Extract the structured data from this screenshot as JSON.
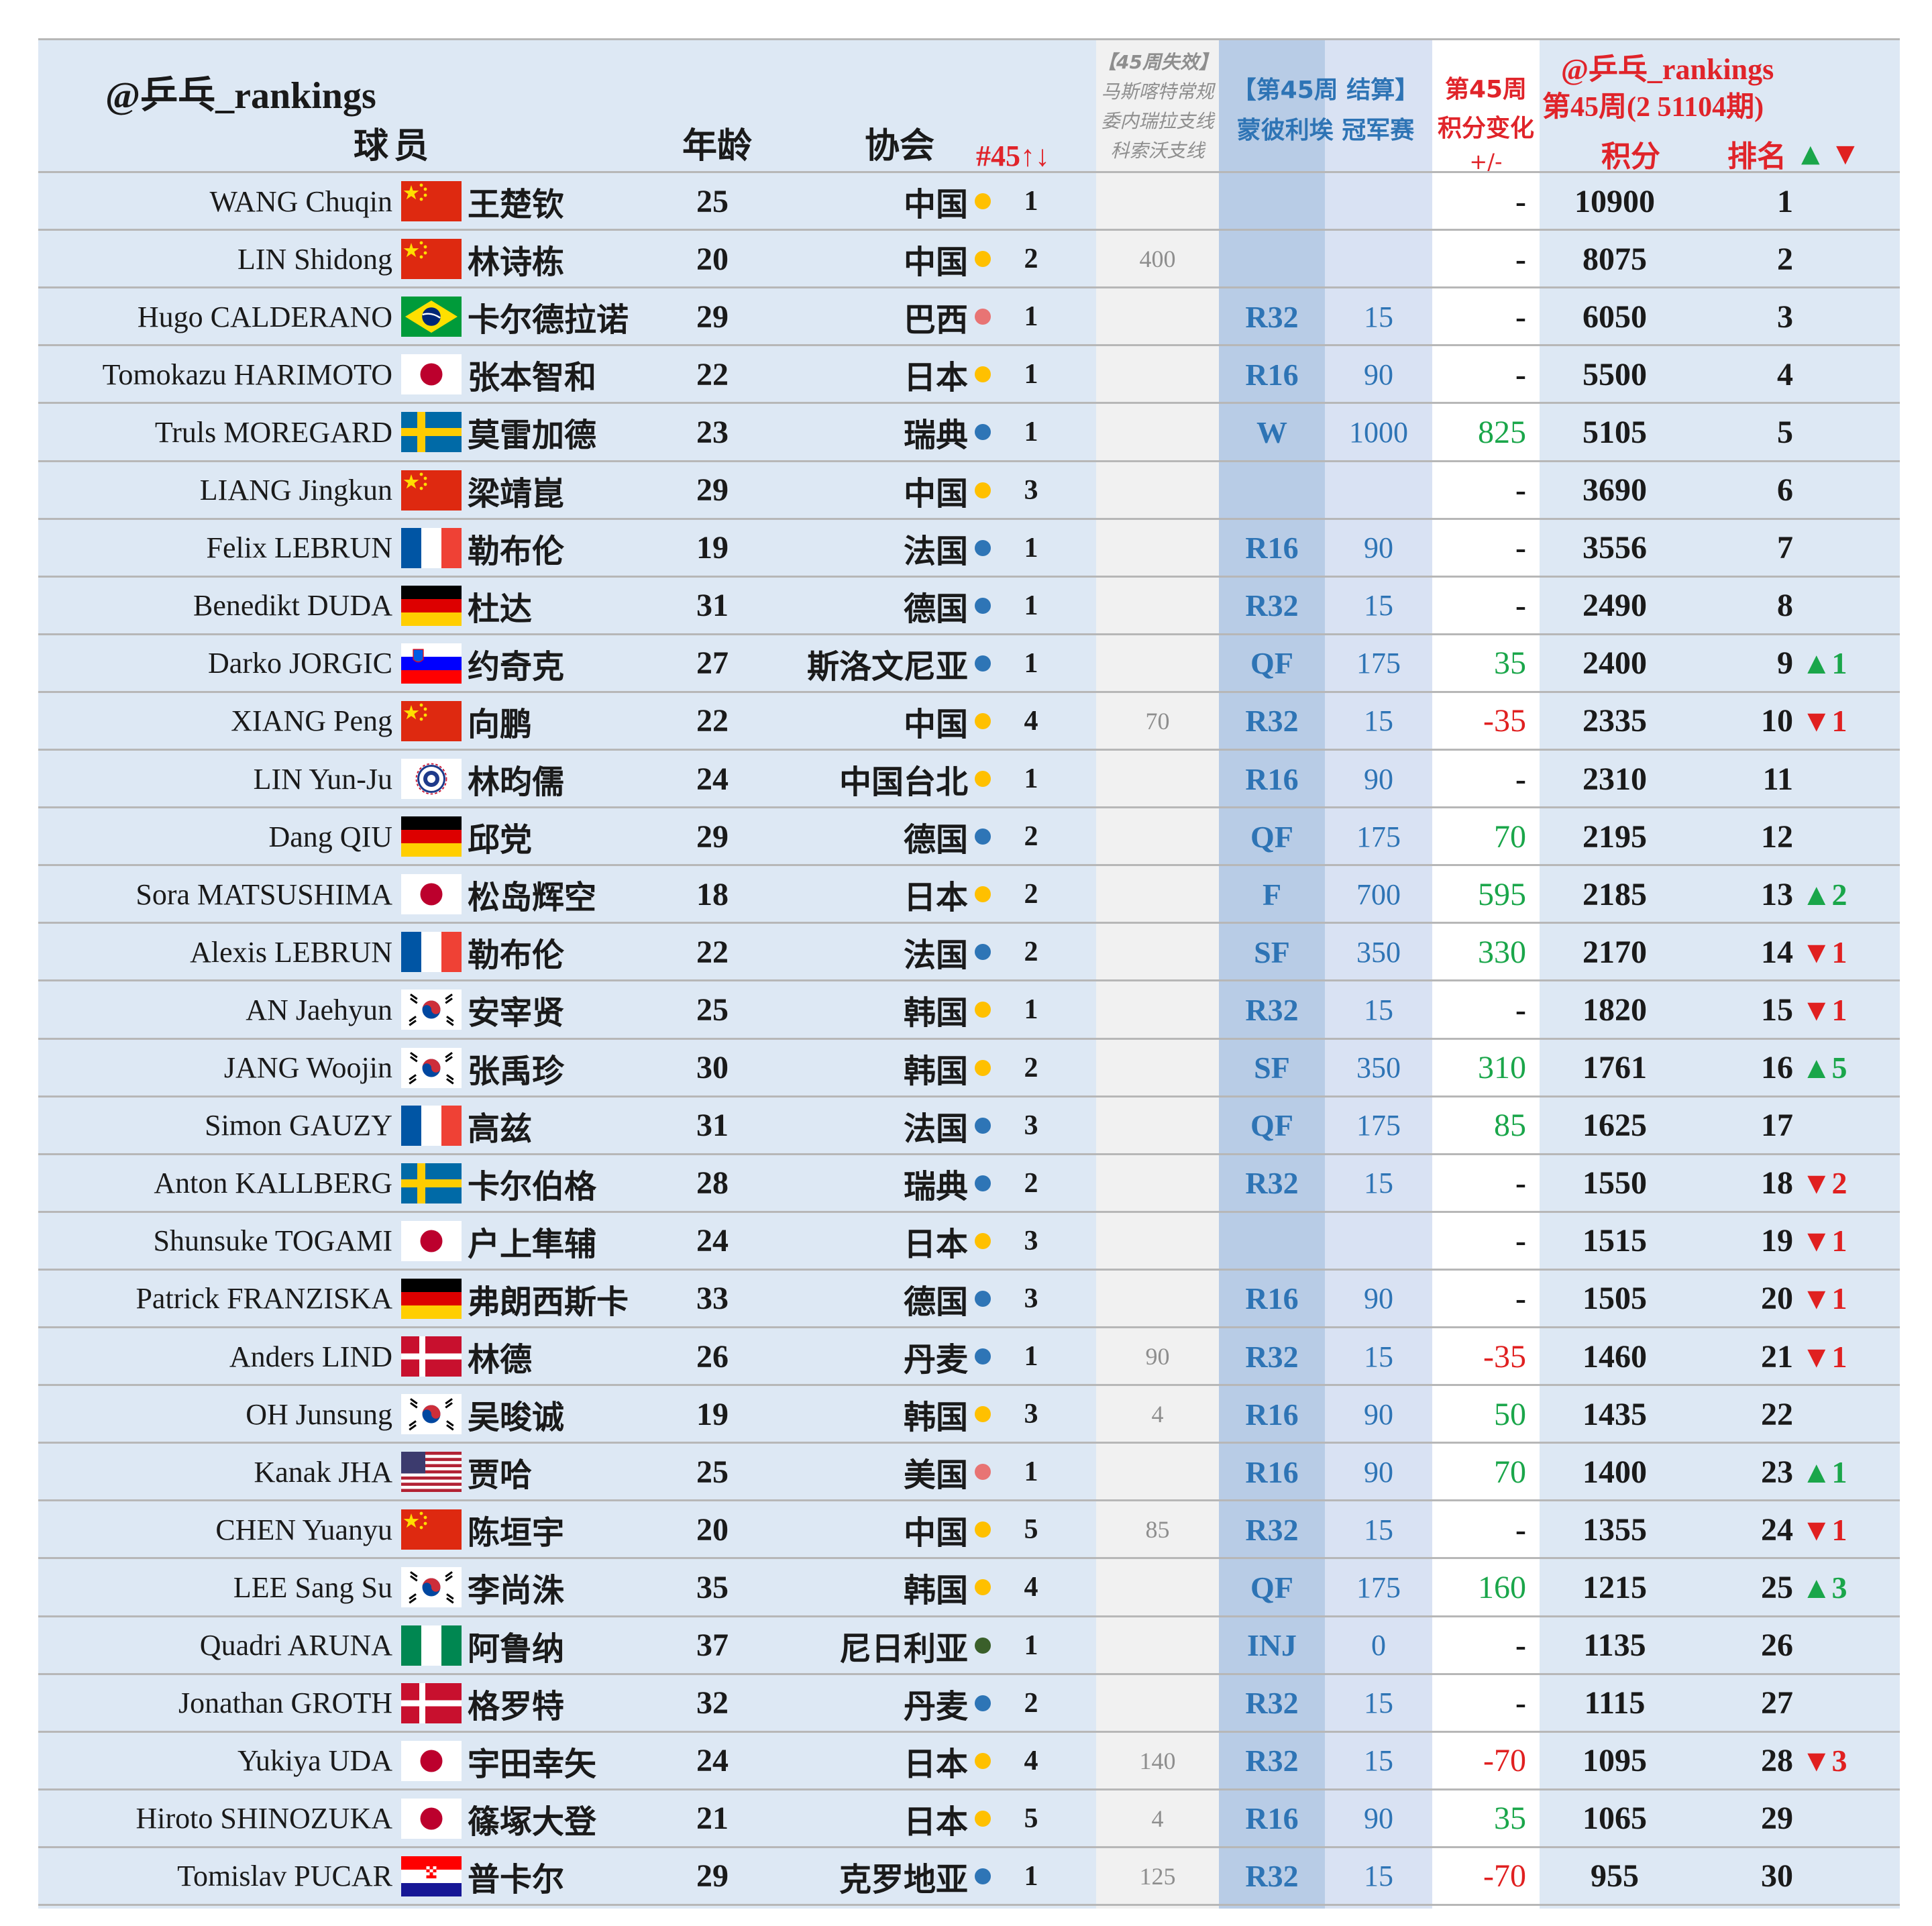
{
  "header": {
    "brand": "@乒乓_rankings",
    "col_player": "球员",
    "col_age": "年龄",
    "col_assoc": "协会",
    "col_nat_rank": "#45↑↓",
    "expired_line1": "【45周失效】",
    "expired_line2": "马斯喀特常规",
    "expired_line3": "委内瑞拉支线",
    "expired_line4": "科索沃支线",
    "event_line1": "【第45周 结算】",
    "event_line2": "蒙彼利埃 冠军赛",
    "change_line1": "第45周",
    "change_line2": "积分变化",
    "change_line3": "+/-",
    "brand2": "@乒乓_rankings",
    "period": "第45周(2 51104期)",
    "col_points": "积分",
    "col_rank": "排名",
    "legend_up": "▲",
    "legend_down": "▼"
  },
  "colors": {
    "background_light": "#dde8f4",
    "expired_column": "#f1f1f1",
    "result_column": "#b8cce6",
    "event_points_column": "#d9e2f3",
    "change_column": "#ffffff",
    "header_red": "#e0242a",
    "positive_green": "#1aa64a",
    "negative_red": "#e02020",
    "result_blue": "#2e74b5",
    "dot_yellow": "#ffc000",
    "dot_blue": "#2e75b6",
    "dot_pink": "#e87474",
    "dot_green": "#3a5f2a"
  },
  "rows": [
    {
      "en": "WANG Chuqin",
      "flag": "china-flag",
      "cn": "王楚钦",
      "age": "25",
      "assoc": "中国",
      "dot": "yellow",
      "nat": "1",
      "expired": "",
      "result": "",
      "event_pts": "",
      "change": "-",
      "change_color": "dark",
      "points": "10900",
      "rank": "1",
      "move": "",
      "move_dir": ""
    },
    {
      "en": "LIN Shidong",
      "flag": "china-flag",
      "cn": "林诗栋",
      "age": "20",
      "assoc": "中国",
      "dot": "yellow",
      "nat": "2",
      "expired": "400",
      "result": "",
      "event_pts": "",
      "change": "-",
      "change_color": "dark",
      "points": "8075",
      "rank": "2",
      "move": "",
      "move_dir": ""
    },
    {
      "en": "Hugo CALDERANO",
      "flag": "brazil-flag",
      "cn": "卡尔德拉诺",
      "age": "29",
      "assoc": "巴西",
      "dot": "pink",
      "nat": "1",
      "expired": "",
      "result": "R32",
      "event_pts": "15",
      "change": "-",
      "change_color": "dark",
      "points": "6050",
      "rank": "3",
      "move": "",
      "move_dir": ""
    },
    {
      "en": "Tomokazu HARIMOTO",
      "flag": "japan-flag",
      "cn": "张本智和",
      "age": "22",
      "assoc": "日本",
      "dot": "yellow",
      "nat": "1",
      "expired": "",
      "result": "R16",
      "event_pts": "90",
      "change": "-",
      "change_color": "dark",
      "points": "5500",
      "rank": "4",
      "move": "",
      "move_dir": ""
    },
    {
      "en": "Truls MOREGARD",
      "flag": "sweden-flag",
      "cn": "莫雷加德",
      "age": "23",
      "assoc": "瑞典",
      "dot": "blue",
      "nat": "1",
      "expired": "",
      "result": "W",
      "event_pts": "1000",
      "change": "825",
      "change_color": "green",
      "points": "5105",
      "rank": "5",
      "move": "",
      "move_dir": ""
    },
    {
      "en": "LIANG Jingkun",
      "flag": "china-flag",
      "cn": "梁靖崑",
      "age": "29",
      "assoc": "中国",
      "dot": "yellow",
      "nat": "3",
      "expired": "",
      "result": "",
      "event_pts": "",
      "change": "-",
      "change_color": "dark",
      "points": "3690",
      "rank": "6",
      "move": "",
      "move_dir": ""
    },
    {
      "en": "Felix LEBRUN",
      "flag": "france-flag",
      "cn": "勒布伦",
      "age": "19",
      "assoc": "法国",
      "dot": "blue",
      "nat": "1",
      "expired": "",
      "result": "R16",
      "event_pts": "90",
      "change": "-",
      "change_color": "dark",
      "points": "3556",
      "rank": "7",
      "move": "",
      "move_dir": ""
    },
    {
      "en": "Benedikt DUDA",
      "flag": "germany-flag",
      "cn": "杜达",
      "age": "31",
      "assoc": "德国",
      "dot": "blue",
      "nat": "1",
      "expired": "",
      "result": "R32",
      "event_pts": "15",
      "change": "-",
      "change_color": "dark",
      "points": "2490",
      "rank": "8",
      "move": "",
      "move_dir": ""
    },
    {
      "en": "Darko JORGIC",
      "flag": "slovenia-flag",
      "cn": "约奇克",
      "age": "27",
      "assoc": "斯洛文尼亚",
      "dot": "blue",
      "nat": "1",
      "expired": "",
      "result": "QF",
      "event_pts": "175",
      "change": "35",
      "change_color": "green",
      "points": "2400",
      "rank": "9",
      "move": "▲1",
      "move_dir": "up"
    },
    {
      "en": "XIANG Peng",
      "flag": "china-flag",
      "cn": "向鹏",
      "age": "22",
      "assoc": "中国",
      "dot": "yellow",
      "nat": "4",
      "expired": "70",
      "result": "R32",
      "event_pts": "15",
      "change": "-35",
      "change_color": "red",
      "points": "2335",
      "rank": "10",
      "move": "▼1",
      "move_dir": "down"
    },
    {
      "en": "LIN Yun-Ju",
      "flag": "chinese-taipei-flag",
      "cn": "林昀儒",
      "age": "24",
      "assoc": "中国台北",
      "dot": "yellow",
      "nat": "1",
      "expired": "",
      "result": "R16",
      "event_pts": "90",
      "change": "-",
      "change_color": "dark",
      "points": "2310",
      "rank": "11",
      "move": "",
      "move_dir": ""
    },
    {
      "en": "Dang QIU",
      "flag": "germany-flag",
      "cn": "邱党",
      "age": "29",
      "assoc": "德国",
      "dot": "blue",
      "nat": "2",
      "expired": "",
      "result": "QF",
      "event_pts": "175",
      "change": "70",
      "change_color": "green",
      "points": "2195",
      "rank": "12",
      "move": "",
      "move_dir": ""
    },
    {
      "en": "Sora MATSUSHIMA",
      "flag": "japan-flag",
      "cn": "松岛辉空",
      "age": "18",
      "assoc": "日本",
      "dot": "yellow",
      "nat": "2",
      "expired": "",
      "result": "F",
      "event_pts": "700",
      "change": "595",
      "change_color": "green",
      "points": "2185",
      "rank": "13",
      "move": "▲2",
      "move_dir": "up"
    },
    {
      "en": "Alexis LEBRUN",
      "flag": "france-flag",
      "cn": "勒布伦",
      "age": "22",
      "assoc": "法国",
      "dot": "blue",
      "nat": "2",
      "expired": "",
      "result": "SF",
      "event_pts": "350",
      "change": "330",
      "change_color": "green",
      "points": "2170",
      "rank": "14",
      "move": "▼1",
      "move_dir": "down"
    },
    {
      "en": "AN Jaehyun",
      "flag": "korea-flag",
      "cn": "安宰贤",
      "age": "25",
      "assoc": "韩国",
      "dot": "yellow",
      "nat": "1",
      "expired": "",
      "result": "R32",
      "event_pts": "15",
      "change": "-",
      "change_color": "dark",
      "points": "1820",
      "rank": "15",
      "move": "▼1",
      "move_dir": "down"
    },
    {
      "en": "JANG Woojin",
      "flag": "korea-flag",
      "cn": "张禹珍",
      "age": "30",
      "assoc": "韩国",
      "dot": "yellow",
      "nat": "2",
      "expired": "",
      "result": "SF",
      "event_pts": "350",
      "change": "310",
      "change_color": "green",
      "points": "1761",
      "rank": "16",
      "move": "▲5",
      "move_dir": "up"
    },
    {
      "en": "Simon GAUZY",
      "flag": "france-flag",
      "cn": "高兹",
      "age": "31",
      "assoc": "法国",
      "dot": "blue",
      "nat": "3",
      "expired": "",
      "result": "QF",
      "event_pts": "175",
      "change": "85",
      "change_color": "green",
      "points": "1625",
      "rank": "17",
      "move": "",
      "move_dir": ""
    },
    {
      "en": "Anton KALLBERG",
      "flag": "sweden-flag",
      "cn": "卡尔伯格",
      "age": "28",
      "assoc": "瑞典",
      "dot": "blue",
      "nat": "2",
      "expired": "",
      "result": "R32",
      "event_pts": "15",
      "change": "-",
      "change_color": "dark",
      "points": "1550",
      "rank": "18",
      "move": "▼2",
      "move_dir": "down"
    },
    {
      "en": "Shunsuke TOGAMI",
      "flag": "japan-flag",
      "cn": "户上隼辅",
      "age": "24",
      "assoc": "日本",
      "dot": "yellow",
      "nat": "3",
      "expired": "",
      "result": "",
      "event_pts": "",
      "change": "-",
      "change_color": "dark",
      "points": "1515",
      "rank": "19",
      "move": "▼1",
      "move_dir": "down"
    },
    {
      "en": "Patrick FRANZISKA",
      "flag": "germany-flag",
      "cn": "弗朗西斯卡",
      "age": "33",
      "assoc": "德国",
      "dot": "blue",
      "nat": "3",
      "expired": "",
      "result": "R16",
      "event_pts": "90",
      "change": "-",
      "change_color": "dark",
      "points": "1505",
      "rank": "20",
      "move": "▼1",
      "move_dir": "down"
    },
    {
      "en": "Anders LIND",
      "flag": "denmark-flag",
      "cn": "林德",
      "age": "26",
      "assoc": "丹麦",
      "dot": "blue",
      "nat": "1",
      "expired": "90",
      "result": "R32",
      "event_pts": "15",
      "change": "-35",
      "change_color": "red",
      "points": "1460",
      "rank": "21",
      "move": "▼1",
      "move_dir": "down"
    },
    {
      "en": "OH Junsung",
      "flag": "korea-flag",
      "cn": "吴晙诚",
      "age": "19",
      "assoc": "韩国",
      "dot": "yellow",
      "nat": "3",
      "expired": "4",
      "result": "R16",
      "event_pts": "90",
      "change": "50",
      "change_color": "green",
      "points": "1435",
      "rank": "22",
      "move": "",
      "move_dir": ""
    },
    {
      "en": "Kanak JHA",
      "flag": "usa-flag",
      "cn": "贾哈",
      "age": "25",
      "assoc": "美国",
      "dot": "pink",
      "nat": "1",
      "expired": "",
      "result": "R16",
      "event_pts": "90",
      "change": "70",
      "change_color": "green",
      "points": "1400",
      "rank": "23",
      "move": "▲1",
      "move_dir": "up"
    },
    {
      "en": "CHEN Yuanyu",
      "flag": "china-flag",
      "cn": "陈垣宇",
      "age": "20",
      "assoc": "中国",
      "dot": "yellow",
      "nat": "5",
      "expired": "85",
      "result": "R32",
      "event_pts": "15",
      "change": "-",
      "change_color": "dark",
      "points": "1355",
      "rank": "24",
      "move": "▼1",
      "move_dir": "down"
    },
    {
      "en": "LEE Sang Su",
      "flag": "korea-flag",
      "cn": "李尚洙",
      "age": "35",
      "assoc": "韩国",
      "dot": "yellow",
      "nat": "4",
      "expired": "",
      "result": "QF",
      "event_pts": "175",
      "change": "160",
      "change_color": "green",
      "points": "1215",
      "rank": "25",
      "move": "▲3",
      "move_dir": "up"
    },
    {
      "en": "Quadri ARUNA",
      "flag": "nigeria-flag",
      "cn": "阿鲁纳",
      "age": "37",
      "assoc": "尼日利亚",
      "dot": "green",
      "nat": "1",
      "expired": "",
      "result": "INJ",
      "event_pts": "0",
      "change": "-",
      "change_color": "dark",
      "points": "1135",
      "rank": "26",
      "move": "",
      "move_dir": ""
    },
    {
      "en": "Jonathan GROTH",
      "flag": "denmark-flag",
      "cn": "格罗特",
      "age": "32",
      "assoc": "丹麦",
      "dot": "blue",
      "nat": "2",
      "expired": "",
      "result": "R32",
      "event_pts": "15",
      "change": "-",
      "change_color": "dark",
      "points": "1115",
      "rank": "27",
      "move": "",
      "move_dir": ""
    },
    {
      "en": "Yukiya UDA",
      "flag": "japan-flag",
      "cn": "宇田幸矢",
      "age": "24",
      "assoc": "日本",
      "dot": "yellow",
      "nat": "4",
      "expired": "140",
      "result": "R32",
      "event_pts": "15",
      "change": "-70",
      "change_color": "red",
      "points": "1095",
      "rank": "28",
      "move": "▼3",
      "move_dir": "down"
    },
    {
      "en": "Hiroto SHINOZUKA",
      "flag": "japan-flag",
      "cn": "篠塚大登",
      "age": "21",
      "assoc": "日本",
      "dot": "yellow",
      "nat": "5",
      "expired": "4",
      "result": "R16",
      "event_pts": "90",
      "change": "35",
      "change_color": "green",
      "points": "1065",
      "rank": "29",
      "move": "",
      "move_dir": ""
    },
    {
      "en": "Tomislav PUCAR",
      "flag": "croatia-flag",
      "cn": "普卡尔",
      "age": "29",
      "assoc": "克罗地亚",
      "dot": "blue",
      "nat": "1",
      "expired": "125",
      "result": "R32",
      "event_pts": "15",
      "change": "-70",
      "change_color": "red",
      "points": "955",
      "rank": "30",
      "move": "",
      "move_dir": ""
    }
  ]
}
